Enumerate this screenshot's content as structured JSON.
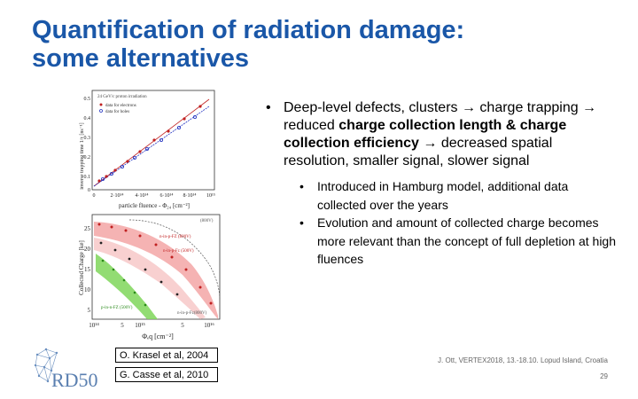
{
  "title": {
    "line1": "Quantification of radiation damage:",
    "line2": "some alternatives"
  },
  "bullet": {
    "text_before": "Deep-level defects, clusters → charge trapping → reduced ",
    "bold": "charge collection length & charge collection efficiency",
    "text_after": " → decreased spatial resolution, smaller signal, slower signal",
    "subitems": [
      "Introduced in Hamburg model, additional data collected over the years",
      "Evolution and amount of collected charge becomes more relevant than the concept of full depletion at high fluences"
    ]
  },
  "figure": {
    "top_plot": {
      "y_label": "inverse trapping time  1/τ [ns⁻¹]",
      "x_label": "particle fluence  -  Φ₂₄ [cm⁻²]",
      "annotation": "24 GeV/c proton irradiation",
      "legend": [
        "data for electrons",
        "data for holes"
      ],
      "y_ticks": [
        "0.5",
        "0.4",
        "0.3",
        "0.2",
        "0.1",
        "0"
      ],
      "x_ticks": [
        "0",
        "2·10¹⁴",
        "4·10¹⁴",
        "6·10¹⁴",
        "8·10¹⁴",
        "10¹⁵"
      ]
    },
    "bottom_plot": {
      "y_label": "Collected Charge [ke]",
      "x_label": "Φₑq [cm⁻²]",
      "y_ticks": [
        "25",
        "20",
        "15",
        "10",
        "5"
      ],
      "x_ticks": [
        "10¹⁴",
        "5",
        "10¹⁵",
        "5",
        "10¹⁶"
      ],
      "labels": [
        "n-in-p-FZ (800V)",
        "p-in-n-FZ (500V)",
        "n-in-p-Fz (500V)",
        "(800V)",
        "n-in-p-Fz(800V)"
      ]
    }
  },
  "refs": [
    "O. Krasel et al, 2004",
    "G. Casse et al, 2010"
  ],
  "footer": "J. Ott, VERTEX2018, 13.-18.10. Lopud Island, Croatia",
  "page_number": "29",
  "logo_text": "RD50"
}
